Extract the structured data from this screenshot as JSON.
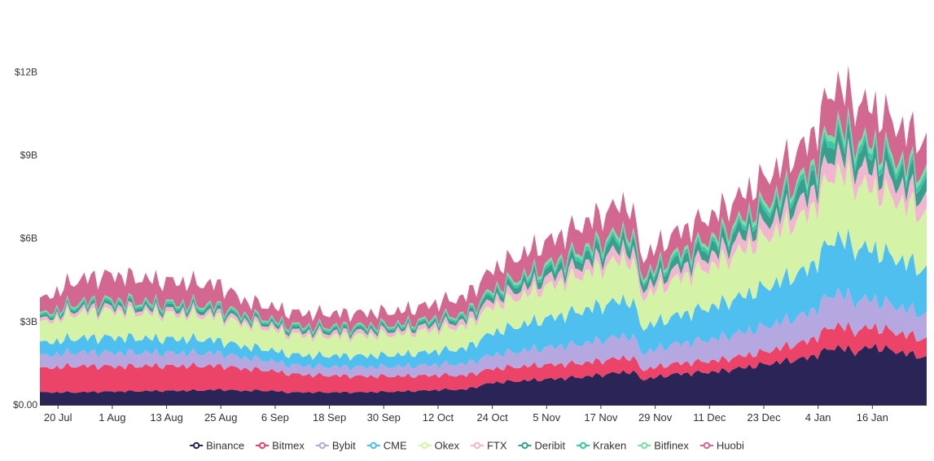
{
  "chart_data": {
    "type": "area",
    "stacked": true,
    "grid": false,
    "legend_position": "bottom",
    "y_ticks": [
      "$0.00",
      "$3B",
      "$6B",
      "$9B",
      "$12B"
    ],
    "y_tick_values": [
      0,
      3,
      6,
      9,
      12
    ],
    "ylim": [
      0,
      13.3
    ],
    "x_ticks": [
      "20 Jul",
      "1 Aug",
      "13 Aug",
      "25 Aug",
      "6 Sep",
      "18 Sep",
      "30 Sep",
      "12 Oct",
      "24 Oct",
      "5 Nov",
      "17 Nov",
      "29 Nov",
      "11 Dec",
      "23 Dec",
      "4 Jan",
      "16 Jan"
    ],
    "x_tick_positions": [
      4,
      16,
      28,
      40,
      52,
      64,
      76,
      88,
      100,
      112,
      124,
      136,
      148,
      160,
      172,
      184
    ],
    "x_range": [
      0,
      196
    ],
    "x_key": [
      0,
      8,
      16,
      25,
      36,
      40,
      45,
      48,
      52,
      54,
      60,
      70,
      80,
      90,
      94,
      100,
      110,
      120,
      130,
      132,
      133,
      140,
      150,
      160,
      170,
      176,
      180,
      184,
      190,
      196
    ],
    "series": [
      {
        "name": "Binance",
        "color": "#2b2557",
        "values": [
          0.45,
          0.45,
          0.48,
          0.5,
          0.52,
          0.55,
          0.5,
          0.52,
          0.5,
          0.45,
          0.45,
          0.45,
          0.48,
          0.55,
          0.55,
          0.8,
          0.9,
          1.0,
          1.2,
          1.1,
          0.9,
          1.1,
          1.2,
          1.45,
          1.7,
          2.1,
          1.9,
          2.1,
          1.9,
          1.7
        ]
      },
      {
        "name": "Bitmex",
        "color": "#ec4468",
        "values": [
          0.85,
          0.95,
          0.9,
          0.9,
          0.88,
          0.85,
          0.8,
          0.75,
          0.72,
          0.68,
          0.62,
          0.58,
          0.55,
          0.52,
          0.5,
          0.5,
          0.52,
          0.5,
          0.52,
          0.45,
          0.35,
          0.38,
          0.4,
          0.45,
          0.6,
          0.8,
          0.75,
          0.7,
          0.68,
          0.65
        ]
      },
      {
        "name": "Bybit",
        "color": "#b5a8e0",
        "values": [
          0.45,
          0.5,
          0.5,
          0.48,
          0.46,
          0.45,
          0.4,
          0.38,
          0.35,
          0.32,
          0.32,
          0.33,
          0.35,
          0.4,
          0.42,
          0.5,
          0.6,
          0.7,
          0.8,
          0.7,
          0.6,
          0.7,
          0.8,
          0.9,
          1.0,
          1.2,
          1.1,
          1.0,
          0.95,
          0.9
        ]
      },
      {
        "name": "CME",
        "color": "#4fbff0",
        "values": [
          0.45,
          0.5,
          0.55,
          0.5,
          0.5,
          0.45,
          0.4,
          0.4,
          0.38,
          0.38,
          0.38,
          0.4,
          0.42,
          0.5,
          0.55,
          0.8,
          1.0,
          1.2,
          1.3,
          1.1,
          0.9,
          1.0,
          1.2,
          1.4,
          1.6,
          2.0,
          1.9,
          1.8,
          1.7,
          1.6
        ]
      },
      {
        "name": "Okex",
        "color": "#d4f3a6",
        "values": [
          0.7,
          0.9,
          0.95,
          0.9,
          0.85,
          0.85,
          0.8,
          0.78,
          0.75,
          0.72,
          0.7,
          0.72,
          0.75,
          0.8,
          0.8,
          0.95,
          1.1,
          1.3,
          1.5,
          1.3,
          1.1,
          1.3,
          1.5,
          1.8,
          2.0,
          2.4,
          2.3,
          2.2,
          2.1,
          2.0
        ]
      },
      {
        "name": "FTX",
        "color": "#f3b6d0",
        "values": [
          0.12,
          0.15,
          0.15,
          0.15,
          0.15,
          0.15,
          0.14,
          0.14,
          0.14,
          0.14,
          0.14,
          0.15,
          0.15,
          0.18,
          0.2,
          0.25,
          0.3,
          0.35,
          0.4,
          0.35,
          0.3,
          0.35,
          0.4,
          0.5,
          0.6,
          0.7,
          0.65,
          0.65,
          0.6,
          0.6
        ]
      },
      {
        "name": "Deribit",
        "color": "#3a9e8c",
        "values": [
          0.08,
          0.1,
          0.12,
          0.12,
          0.12,
          0.12,
          0.1,
          0.1,
          0.1,
          0.1,
          0.1,
          0.1,
          0.1,
          0.12,
          0.12,
          0.2,
          0.25,
          0.3,
          0.35,
          0.3,
          0.25,
          0.3,
          0.35,
          0.4,
          0.5,
          0.6,
          0.55,
          0.55,
          0.5,
          0.5
        ]
      },
      {
        "name": "Kraken",
        "color": "#3cc7a8",
        "values": [
          0.07,
          0.08,
          0.08,
          0.08,
          0.08,
          0.08,
          0.07,
          0.07,
          0.07,
          0.07,
          0.07,
          0.07,
          0.07,
          0.08,
          0.08,
          0.1,
          0.12,
          0.14,
          0.15,
          0.14,
          0.12,
          0.14,
          0.15,
          0.18,
          0.2,
          0.25,
          0.24,
          0.23,
          0.22,
          0.22
        ]
      },
      {
        "name": "Bitfinex",
        "color": "#7cdca6",
        "values": [
          0.05,
          0.06,
          0.06,
          0.06,
          0.06,
          0.06,
          0.05,
          0.05,
          0.05,
          0.05,
          0.05,
          0.05,
          0.05,
          0.06,
          0.06,
          0.08,
          0.1,
          0.12,
          0.14,
          0.12,
          0.1,
          0.12,
          0.14,
          0.16,
          0.18,
          0.22,
          0.2,
          0.2,
          0.2,
          0.2
        ]
      },
      {
        "name": "Huobi",
        "color": "#d2678f",
        "values": [
          0.5,
          0.8,
          0.9,
          0.8,
          0.75,
          0.75,
          0.5,
          0.45,
          0.45,
          0.45,
          0.45,
          0.45,
          0.45,
          0.55,
          0.6,
          0.7,
          0.8,
          0.9,
          1.0,
          0.7,
          0.65,
          0.75,
          0.8,
          0.9,
          1.1,
          1.4,
          1.3,
          1.3,
          1.2,
          1.1
        ]
      }
    ]
  }
}
